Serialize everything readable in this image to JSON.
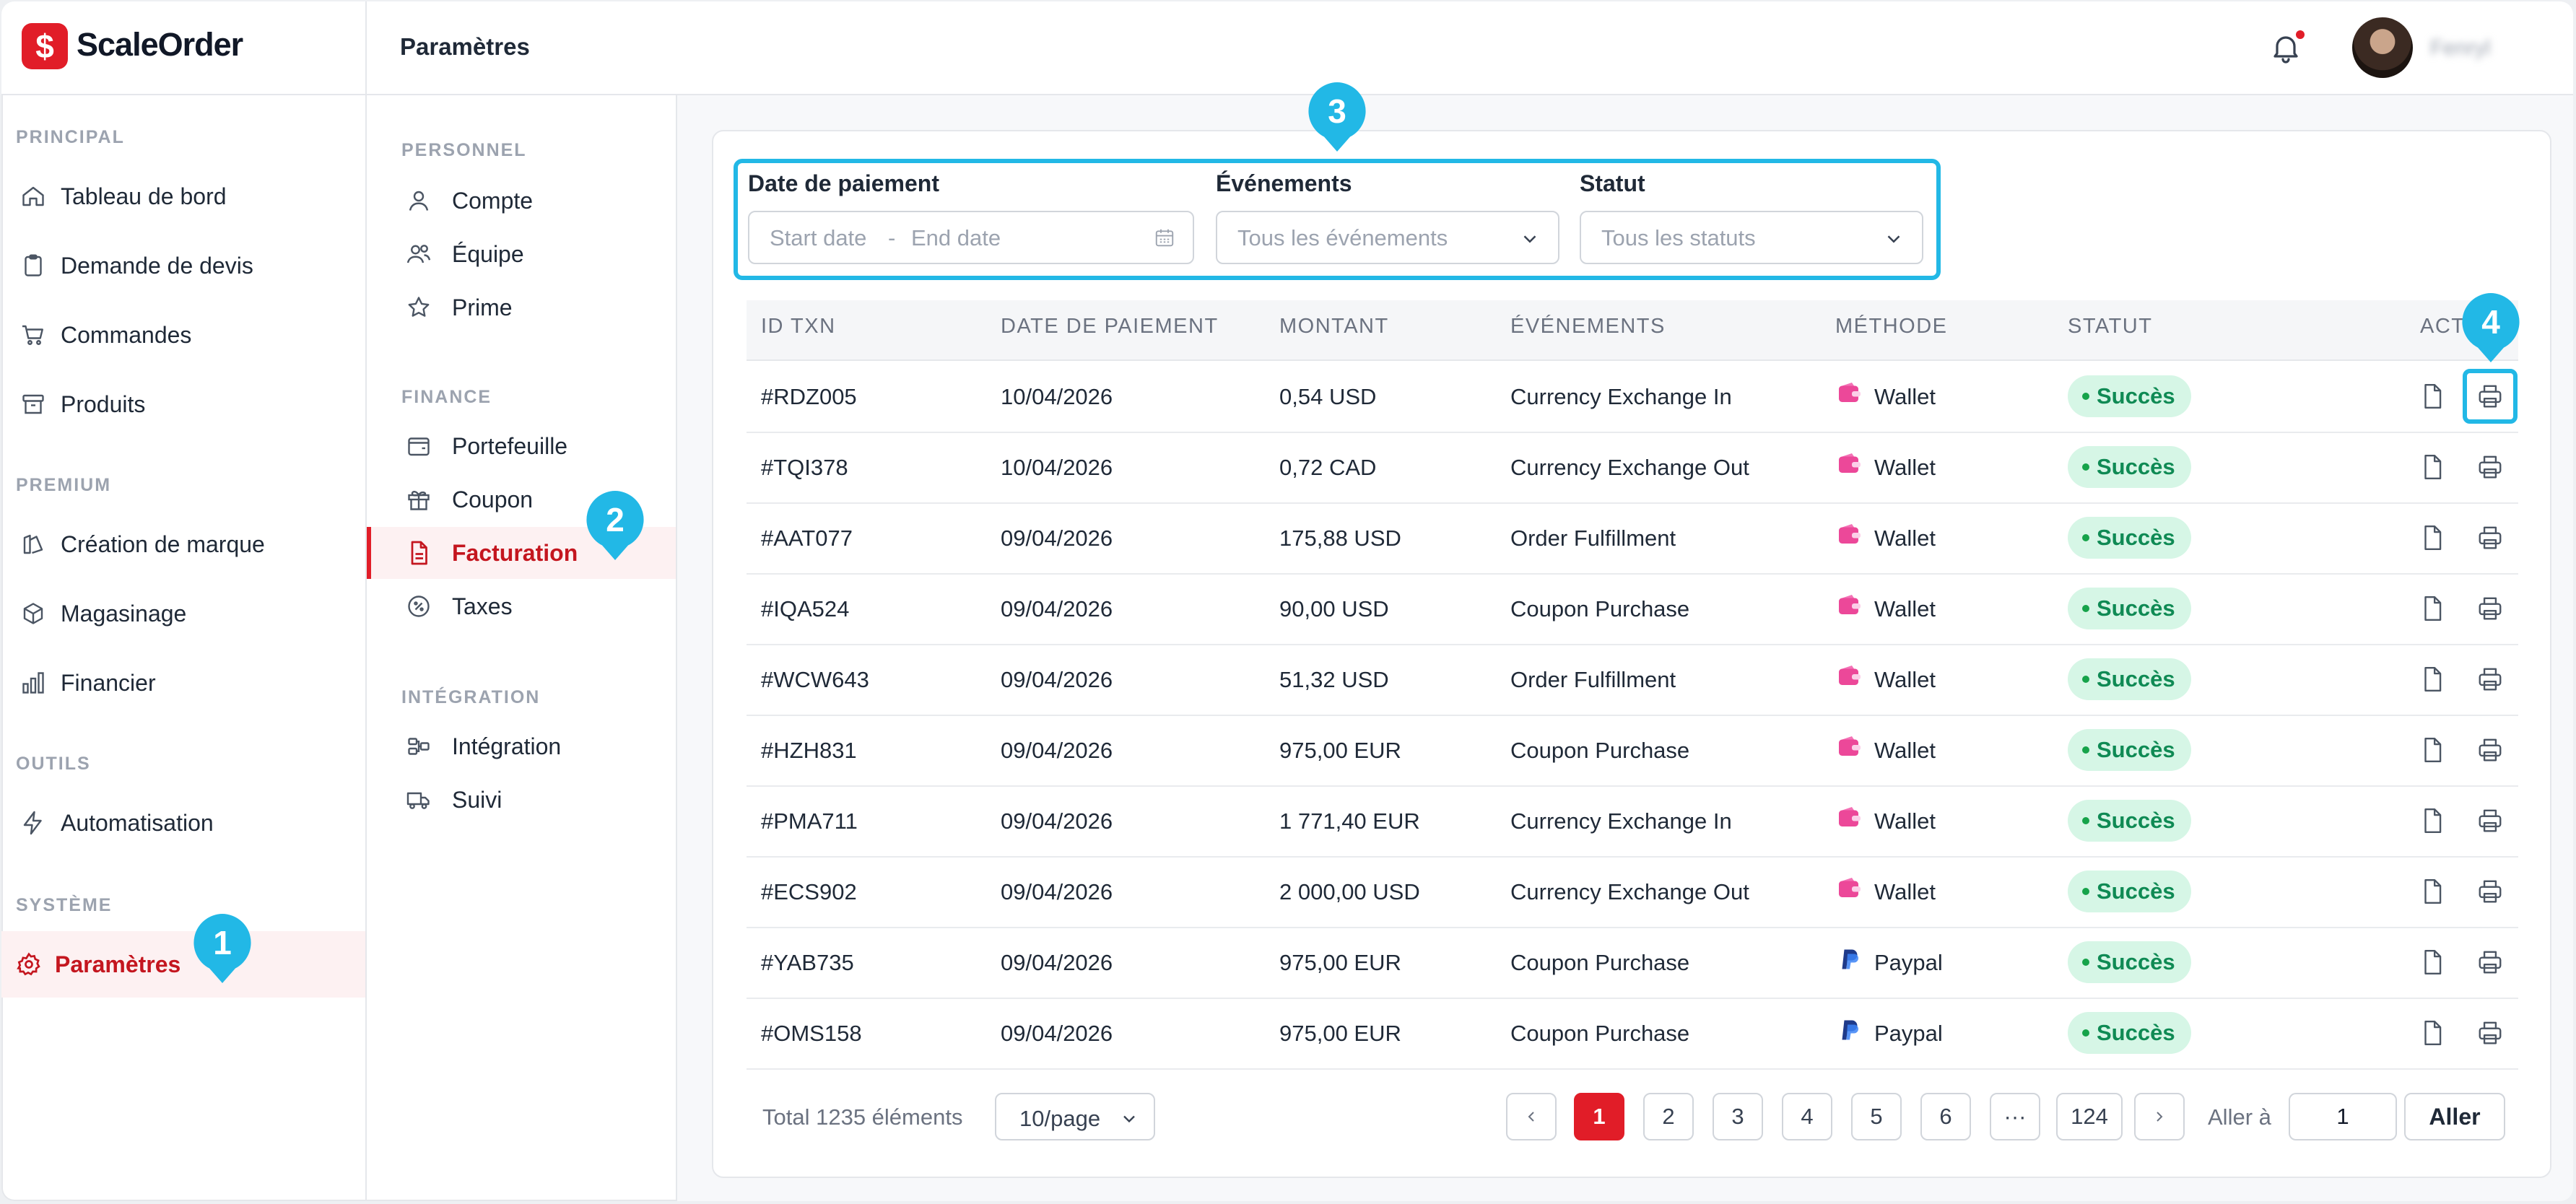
{
  "brand": {
    "name": "ScaleOrder",
    "logo_glyph": "$"
  },
  "header": {
    "title": "Paramètres",
    "username": "Fenryl"
  },
  "sidebar": {
    "sections": [
      {
        "title": "PRINCIPAL",
        "items": [
          {
            "label": "Tableau de bord",
            "icon": "home-icon"
          },
          {
            "label": "Demande de devis",
            "icon": "clipboard-icon"
          },
          {
            "label": "Commandes",
            "icon": "cart-icon"
          },
          {
            "label": "Produits",
            "icon": "archive-icon"
          }
        ]
      },
      {
        "title": "PREMIUM",
        "items": [
          {
            "label": "Création de marque",
            "icon": "brush-icon"
          },
          {
            "label": "Magasinage",
            "icon": "box-icon"
          },
          {
            "label": "Financier",
            "icon": "bar-chart-icon"
          }
        ]
      },
      {
        "title": "OUTILS",
        "items": [
          {
            "label": "Automatisation",
            "icon": "bolt-icon"
          }
        ]
      },
      {
        "title": "SYSTÈME",
        "items": [
          {
            "label": "Paramètres",
            "icon": "gear-icon",
            "active": true
          }
        ]
      }
    ]
  },
  "subnav": {
    "sections": [
      {
        "title": "PERSONNEL",
        "items": [
          {
            "label": "Compte",
            "icon": "user-icon"
          },
          {
            "label": "Équipe",
            "icon": "users-icon"
          },
          {
            "label": "Prime",
            "icon": "star-icon"
          }
        ]
      },
      {
        "title": "FINANCE",
        "items": [
          {
            "label": "Portefeuille",
            "icon": "wallet-icon"
          },
          {
            "label": "Coupon",
            "icon": "gift-icon"
          },
          {
            "label": "Facturation",
            "icon": "invoice-icon",
            "active": true
          },
          {
            "label": "Taxes",
            "icon": "percent-icon"
          }
        ]
      },
      {
        "title": "INTÉGRATION",
        "items": [
          {
            "label": "Intégration",
            "icon": "integration-icon"
          },
          {
            "label": "Suivi",
            "icon": "truck-icon"
          }
        ]
      }
    ]
  },
  "filters": {
    "date_label": "Date de paiement",
    "start_placeholder": "Start date",
    "date_separator": "-",
    "end_placeholder": "End date",
    "events_label": "Événements",
    "events_placeholder": "Tous les événements",
    "status_label": "Statut",
    "status_placeholder": "Tous les statuts"
  },
  "table": {
    "headers": [
      "ID TXN",
      "DATE DE PAIEMENT",
      "MONTANT",
      "ÉVÉNEMENTS",
      "MÉTHODE",
      "STATUT",
      "ACTIONS"
    ],
    "rows": [
      {
        "id": "#RDZ005",
        "date": "10/04/2026",
        "amount": "0,54 USD",
        "event": "Currency Exchange In",
        "method": "Wallet",
        "status": "Succès"
      },
      {
        "id": "#TQI378",
        "date": "10/04/2026",
        "amount": "0,72 CAD",
        "event": "Currency Exchange Out",
        "method": "Wallet",
        "status": "Succès"
      },
      {
        "id": "#AAT077",
        "date": "09/04/2026",
        "amount": "175,88 USD",
        "event": "Order Fulfillment",
        "method": "Wallet",
        "status": "Succès"
      },
      {
        "id": "#IQA524",
        "date": "09/04/2026",
        "amount": "90,00 USD",
        "event": "Coupon Purchase",
        "method": "Wallet",
        "status": "Succès"
      },
      {
        "id": "#WCW643",
        "date": "09/04/2026",
        "amount": "51,32 USD",
        "event": "Order Fulfillment",
        "method": "Wallet",
        "status": "Succès"
      },
      {
        "id": "#HZH831",
        "date": "09/04/2026",
        "amount": "975,00 EUR",
        "event": "Coupon Purchase",
        "method": "Wallet",
        "status": "Succès"
      },
      {
        "id": "#PMA711",
        "date": "09/04/2026",
        "amount": "1 771,40 EUR",
        "event": "Currency Exchange In",
        "method": "Wallet",
        "status": "Succès"
      },
      {
        "id": "#ECS902",
        "date": "09/04/2026",
        "amount": "2 000,00 USD",
        "event": "Currency Exchange Out",
        "method": "Wallet",
        "status": "Succès"
      },
      {
        "id": "#YAB735",
        "date": "09/04/2026",
        "amount": "975,00 EUR",
        "event": "Coupon Purchase",
        "method": "Paypal",
        "status": "Succès"
      },
      {
        "id": "#OMS158",
        "date": "09/04/2026",
        "amount": "975,00 EUR",
        "event": "Coupon Purchase",
        "method": "Paypal",
        "status": "Succès"
      }
    ]
  },
  "pagination": {
    "total": "Total 1235 éléments",
    "per_page": "10/page",
    "pages": [
      "1",
      "2",
      "3",
      "4",
      "5",
      "6",
      "···",
      "124"
    ],
    "current": "1",
    "goto_label": "Aller à",
    "goto_value": "1",
    "goto_button": "Aller"
  },
  "callouts": [
    "1",
    "2",
    "3",
    "4"
  ],
  "colors": {
    "accent": "#e11d28",
    "callout": "#22b8e6",
    "success_bg": "#d6f6e6",
    "success_text": "#0f8a54",
    "wallet": "#ec4899",
    "paypal": "#1e40af"
  }
}
